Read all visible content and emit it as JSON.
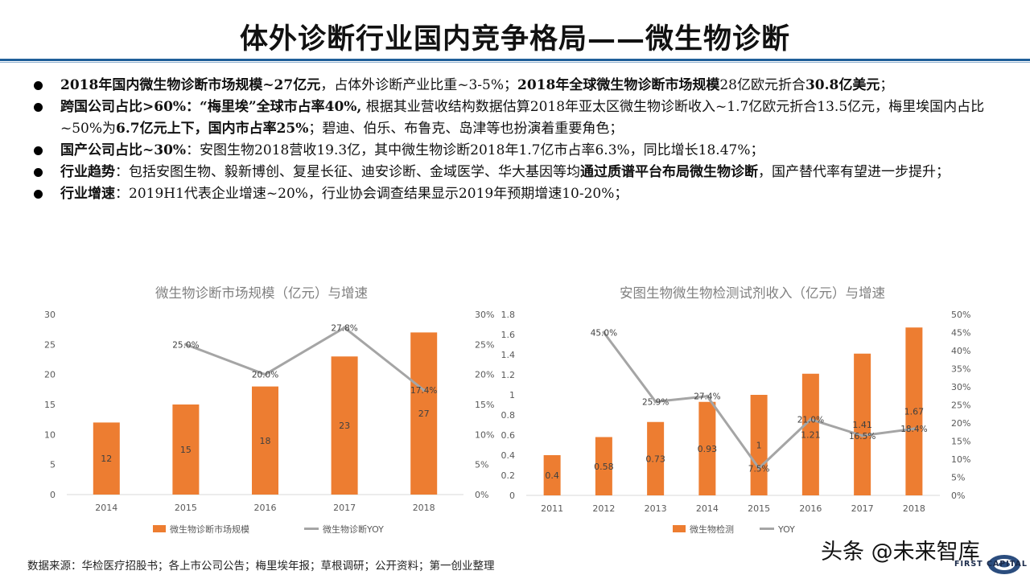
{
  "title": "体外诊断行业国内竞争格局——微生物诊断",
  "bullets": [
    {
      "segments": [
        {
          "t": "2018年国内微生物诊断市场规模~27亿元",
          "b": true
        },
        {
          "t": "，占体外诊断产业比重~3-5%；",
          "b": false
        },
        {
          "t": "2018年全球微生物诊断市场规模",
          "b": true
        },
        {
          "t": "28亿欧元折合",
          "b": false
        },
        {
          "t": "30.8亿美元",
          "b": true
        },
        {
          "t": "；",
          "b": false
        }
      ]
    },
    {
      "segments": [
        {
          "t": "跨国公司占比>60%：“梅里埃”全球市占率40%,",
          "b": true
        },
        {
          "t": " 根据其业营收结构数据估算2018年亚太区微生物诊断收入~1.7亿欧元折合13.5亿元，梅里埃国内占比~50%为",
          "b": false
        },
        {
          "t": "6.7亿元上下，国内市占率25%",
          "b": true
        },
        {
          "t": "；碧迪、伯乐、布鲁克、岛津等也扮演着重要角色；",
          "b": false
        }
      ]
    },
    {
      "segments": [
        {
          "t": "国产公司占比~30%",
          "b": true
        },
        {
          "t": "：安图生物2018营收19.3亿，其中微生物诊断2018年1.7亿市占率6.3%，同比增长18.47%；",
          "b": false
        }
      ]
    },
    {
      "segments": [
        {
          "t": "行业趋势",
          "b": true
        },
        {
          "t": "：包括安图生物、毅新博创、复星长征、迪安诊断、金域医学、华大基因等均",
          "b": false
        },
        {
          "t": "通过质谱平台布局微生物诊断",
          "b": true
        },
        {
          "t": "，国产替代率有望进一步提升；",
          "b": false
        }
      ]
    },
    {
      "segments": [
        {
          "t": "行业增速",
          "b": true
        },
        {
          "t": "：2019H1代表企业增速~20%，行业协会调查结果显示2019年预期增速10-20%；",
          "b": false
        }
      ]
    }
  ],
  "source": "数据来源：华检医疗招股书；各上市公司公告；梅里埃年报；草根调研；公开资料；第一创业整理",
  "watermark": "头条 @未来智库",
  "logo_text": "FIRST CAPITAL",
  "colors": {
    "bar": "#ed7d31",
    "line": "#a5a5a5",
    "axis": "#595959",
    "grid": "#d9d9d9",
    "title_rule": "#1f5f99"
  },
  "chart_data": [
    {
      "type": "bar",
      "title": "微生物诊断市场规模（亿元）与增速",
      "categories": [
        "2014",
        "2015",
        "2016",
        "2017",
        "2018"
      ],
      "series": [
        {
          "name": "微生物诊断市场规模",
          "kind": "bar",
          "axis": "left",
          "values": [
            12,
            15,
            18,
            23,
            27
          ],
          "labels": [
            "12",
            "15",
            "18",
            "23",
            "27"
          ]
        },
        {
          "name": "微生物诊断YOY",
          "kind": "line",
          "axis": "right",
          "values": [
            null,
            25.0,
            20.0,
            27.8,
            17.4
          ],
          "labels": [
            "",
            "25.0%",
            "20.0%",
            "27.8%",
            "17.4%"
          ]
        }
      ],
      "ylim": [
        0,
        30
      ],
      "yticks": [
        "0",
        "5",
        "10",
        "15",
        "20",
        "25",
        "30"
      ],
      "y2lim": [
        0,
        30
      ],
      "y2ticks": [
        "0%",
        "5%",
        "10%",
        "15%",
        "20%",
        "25%",
        "30%"
      ],
      "legend": "bottom",
      "grid": false
    },
    {
      "type": "bar",
      "title": "安图生物微生物检测试剂收入（亿元）与增速",
      "categories": [
        "2011",
        "2012",
        "2013",
        "2014",
        "2015",
        "2016",
        "2017",
        "2018"
      ],
      "series": [
        {
          "name": "微生物检测",
          "kind": "bar",
          "axis": "left",
          "values": [
            0.4,
            0.58,
            0.73,
            0.93,
            1,
            1.21,
            1.41,
            1.67
          ],
          "labels": [
            "0.4",
            "0.58",
            "0.73",
            "0.93",
            "1",
            "1.21",
            "1.41",
            "1.67"
          ]
        },
        {
          "name": "YOY",
          "kind": "line",
          "axis": "right",
          "values": [
            null,
            45.0,
            25.9,
            27.4,
            7.5,
            21.0,
            16.5,
            18.4
          ],
          "labels": [
            "",
            "45.0%",
            "25.9%",
            "27.4%",
            "7.5%",
            "21.0%",
            "16.5%",
            "18.4%"
          ]
        }
      ],
      "ylim": [
        0,
        1.8
      ],
      "yticks": [
        "0",
        "0.2",
        "0.4",
        "0.6",
        "0.8",
        "1",
        "1.2",
        "1.4",
        "1.6",
        "1.8"
      ],
      "y2lim": [
        0,
        50
      ],
      "y2ticks": [
        "0%",
        "5%",
        "10%",
        "15%",
        "20%",
        "25%",
        "30%",
        "35%",
        "40%",
        "45%",
        "50%"
      ],
      "legend": "bottom",
      "grid": false
    }
  ]
}
